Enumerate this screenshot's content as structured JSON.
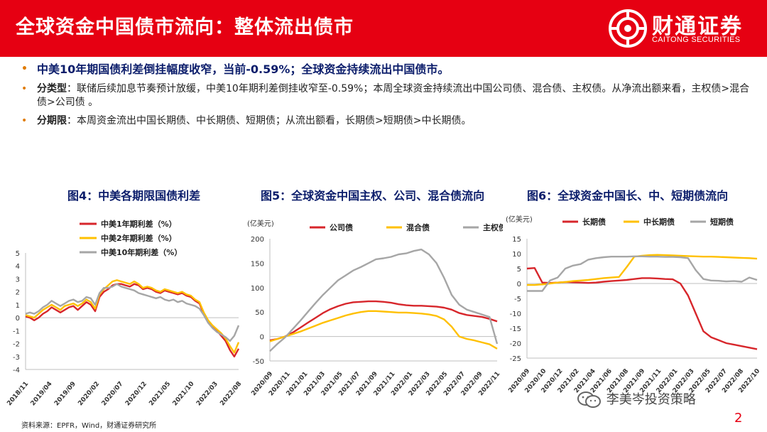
{
  "header": {
    "title": "全球资金中国债市流向：整体流出债市"
  },
  "logo": {
    "cn": "财通证券",
    "en": "CAITONG SECURITIES"
  },
  "bullets": [
    {
      "label": "",
      "text": "中美10年期国债利差倒挂幅度收窄，当前-0.59%；全球资金持续流出中国债市。"
    },
    {
      "label": "分类型",
      "text": "：联储后续加息节奏预计放缓，中美10年期利差倒挂收窄至-0.59%；本周全球资金持续流出中国公司债、混合债、主权债。从净流出额来看，主权债>混合债>公司债 。"
    },
    {
      "label": "分期限",
      "text": "：本周资金流出中国长期债、中长期债、短期债；从流出额看，长期债>短期债>中长期债。"
    }
  ],
  "footer": {
    "source": "资料来源：EPFR，Wind，财通证券研究所",
    "wechat": "李美岑投资策略",
    "page": "2"
  },
  "colors": {
    "brand": "#e60012",
    "navy": "#0b1d6b",
    "red": "#d7262b",
    "yellow": "#ffc000",
    "gray": "#a6a6a6"
  },
  "chart_data": [
    {
      "type": "line",
      "title": "图4：中美各期限国债利差",
      "ylim": [
        -4,
        5
      ],
      "yticks": [
        -4,
        -3,
        -2,
        -1,
        0,
        1,
        2,
        3,
        4,
        5
      ],
      "xticks": [
        "2018/11",
        "2019/04",
        "2019/09",
        "2020/02",
        "2020/07",
        "2020/12",
        "2021/05",
        "2021/10",
        "2022/03",
        "2022/08"
      ],
      "x": [
        0,
        1,
        2,
        3,
        4,
        5,
        6,
        7,
        8,
        9,
        10,
        11,
        12,
        13,
        14,
        15,
        16,
        17,
        18,
        19,
        20,
        21,
        22,
        23,
        24,
        25,
        26,
        27,
        28,
        29,
        30,
        31,
        32,
        33,
        34,
        35,
        36,
        37,
        38,
        39,
        40,
        41,
        42,
        43,
        44,
        45,
        46,
        47,
        48,
        49
      ],
      "series": [
        {
          "name": "中美1年期利差（%）",
          "color": "#d7262b",
          "values": [
            0.1,
            0.0,
            -0.2,
            0.0,
            0.3,
            0.5,
            0.8,
            0.6,
            0.4,
            0.6,
            0.8,
            0.9,
            0.6,
            0.9,
            1.2,
            1.0,
            0.5,
            1.6,
            2.0,
            2.2,
            2.5,
            2.6,
            2.6,
            2.5,
            2.4,
            2.6,
            2.5,
            2.2,
            2.3,
            2.2,
            2.0,
            1.9,
            2.1,
            2.0,
            1.9,
            1.8,
            1.9,
            1.7,
            1.6,
            1.3,
            1.1,
            0.3,
            -0.3,
            -0.7,
            -1.0,
            -1.4,
            -1.8,
            -2.5,
            -3.0,
            -2.4
          ]
        },
        {
          "name": "中美2年期利差（%）",
          "color": "#ffc000",
          "values": [
            0.2,
            0.1,
            0.0,
            0.3,
            0.6,
            0.8,
            1.0,
            0.8,
            0.6,
            0.9,
            1.0,
            1.1,
            0.9,
            1.1,
            1.4,
            1.2,
            0.7,
            1.8,
            2.2,
            2.5,
            2.8,
            2.9,
            2.8,
            2.7,
            2.6,
            2.8,
            2.6,
            2.3,
            2.4,
            2.3,
            2.1,
            2.0,
            2.2,
            2.1,
            2.0,
            1.9,
            2.0,
            1.8,
            1.7,
            1.4,
            1.2,
            0.4,
            -0.2,
            -0.6,
            -0.9,
            -1.2,
            -1.6,
            -2.2,
            -2.7,
            -1.9
          ]
        },
        {
          "name": "中美10年期利差（%）",
          "color": "#a6a6a6",
          "values": [
            0.3,
            0.4,
            0.3,
            0.5,
            0.8,
            1.0,
            1.3,
            1.1,
            0.9,
            1.1,
            1.3,
            1.4,
            1.2,
            1.3,
            1.6,
            1.5,
            1.0,
            1.9,
            2.3,
            2.3,
            2.4,
            2.6,
            2.4,
            2.3,
            2.2,
            2.1,
            1.9,
            1.8,
            1.7,
            1.6,
            1.5,
            1.6,
            1.4,
            1.3,
            1.4,
            1.2,
            1.3,
            1.1,
            1.0,
            0.9,
            0.7,
            0.2,
            -0.4,
            -0.8,
            -1.1,
            -1.3,
            -1.5,
            -1.8,
            -1.4,
            -0.6
          ]
        }
      ]
    },
    {
      "type": "line",
      "title": "图5：全球资金中国主权、公司、混合债流向",
      "unit": "(亿美元)",
      "ylim": [
        -50,
        200
      ],
      "yticks": [
        -50,
        0,
        50,
        100,
        150,
        200
      ],
      "xticks": [
        "2020/09",
        "2020/11",
        "2021/01",
        "2021/03",
        "2021/05",
        "2021/07",
        "2021/09",
        "2021/11",
        "2022/01",
        "2022/03",
        "2022/05",
        "2022/07",
        "2022/09",
        "2022/11"
      ],
      "x": [
        0,
        1,
        2,
        3,
        4,
        5,
        6,
        7,
        8,
        9,
        10,
        11,
        12,
        13,
        14,
        15,
        16,
        17,
        18,
        19,
        20,
        21,
        22,
        23,
        24,
        25,
        26,
        27,
        28,
        29,
        30
      ],
      "series": [
        {
          "name": "公司债",
          "color": "#d7262b",
          "values": [
            -8,
            -5,
            0,
            8,
            18,
            28,
            38,
            48,
            56,
            62,
            67,
            70,
            71,
            72,
            72,
            71,
            69,
            66,
            64,
            63,
            63,
            62,
            61,
            59,
            55,
            48,
            44,
            42,
            40,
            36,
            31
          ]
        },
        {
          "name": "混合债",
          "color": "#ffc000",
          "values": [
            -10,
            -5,
            0,
            5,
            10,
            16,
            22,
            28,
            33,
            38,
            43,
            47,
            50,
            52,
            52,
            51,
            50,
            49,
            49,
            48,
            47,
            45,
            42,
            35,
            20,
            0,
            -5,
            -8,
            -12,
            -16,
            -25
          ]
        },
        {
          "name": "主权债",
          "color": "#a6a6a6",
          "values": [
            -30,
            -15,
            -2,
            15,
            32,
            50,
            68,
            85,
            100,
            115,
            125,
            135,
            142,
            150,
            158,
            160,
            163,
            168,
            170,
            175,
            178,
            168,
            150,
            120,
            85,
            65,
            55,
            50,
            45,
            40,
            -15
          ]
        }
      ]
    },
    {
      "type": "line",
      "title": "图6：全球资金中国长、中、短期债流向",
      "unit": "(亿美元)",
      "ylim": [
        -25,
        15
      ],
      "yticks": [
        -25,
        -20,
        -15,
        -10,
        -5,
        0,
        5,
        10,
        15
      ],
      "xticks": [
        "2020/09",
        "2020/10",
        "2020/12",
        "2021/02",
        "2021/04",
        "2021/06",
        "2021/08",
        "2021/09",
        "2021/11",
        "2022/01",
        "2022/03",
        "2022/05",
        "2022/07",
        "2022/08",
        "2022/10"
      ],
      "x": [
        0,
        1,
        2,
        3,
        4,
        5,
        6,
        7,
        8,
        9,
        10,
        11,
        12,
        13,
        14,
        15,
        16,
        17,
        18,
        19,
        20,
        21,
        22,
        23,
        24,
        25,
        26,
        27,
        28,
        29,
        30
      ],
      "series": [
        {
          "name": "长期债",
          "color": "#d7262b",
          "values": [
            5,
            5.2,
            0.3,
            0.2,
            0.3,
            0.5,
            0.4,
            0.3,
            0.2,
            0.3,
            0.6,
            0.8,
            1.0,
            1.2,
            1.5,
            1.8,
            1.8,
            1.7,
            1.5,
            1.4,
            0,
            -4,
            -10,
            -16,
            -18,
            -19,
            -20,
            -20.5,
            -21,
            -21.5,
            -22
          ]
        },
        {
          "name": "中长期债",
          "color": "#ffc000",
          "values": [
            -0.5,
            -0.5,
            -0.3,
            0,
            0.3,
            0.5,
            0.8,
            1.0,
            1.2,
            1.5,
            1.8,
            2.0,
            2.2,
            5.5,
            9.0,
            9.3,
            9.5,
            9.6,
            9.5,
            9.4,
            9.3,
            9.2,
            9.1,
            9.0,
            9.0,
            8.9,
            8.8,
            8.7,
            8.6,
            8.5,
            8.3
          ]
        },
        {
          "name": "短期债",
          "color": "#a6a6a6",
          "values": [
            -2.5,
            -2.5,
            -2.5,
            1.0,
            2.0,
            5.0,
            6.0,
            6.5,
            8.0,
            8.5,
            8.8,
            9.0,
            9.0,
            9.0,
            9.1,
            9.1,
            9.0,
            9.0,
            8.9,
            8.9,
            8.8,
            8.5,
            4.5,
            1.5,
            1.0,
            0.9,
            0.7,
            0.8,
            0.6,
            2.0,
            1.2
          ]
        }
      ]
    }
  ]
}
